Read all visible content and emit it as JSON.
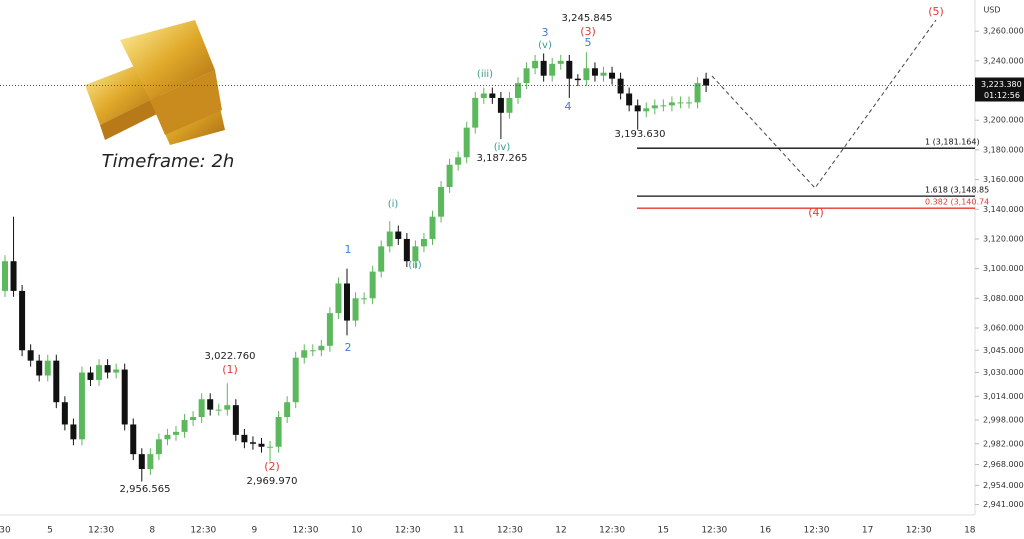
{
  "chart_data": {
    "type": "candlestick",
    "title": "Timeframe: 2h",
    "axis_unit": "USD",
    "ylim": [
      2934,
      3281
    ],
    "yticks": [
      {
        "value": 2941,
        "label": "2,941.000"
      },
      {
        "value": 2954,
        "label": "2,954.000"
      },
      {
        "value": 2968,
        "label": "2,968.000"
      },
      {
        "value": 2982,
        "label": "2,982.000"
      },
      {
        "value": 2998,
        "label": "2,998.000"
      },
      {
        "value": 3014,
        "label": "3,014.000"
      },
      {
        "value": 3030,
        "label": "3,030.000"
      },
      {
        "value": 3045,
        "label": "3,045.000"
      },
      {
        "value": 3060,
        "label": "3,060.000"
      },
      {
        "value": 3080,
        "label": "3,080.000"
      },
      {
        "value": 3100,
        "label": "3,100.000"
      },
      {
        "value": 3120,
        "label": "3,120.000"
      },
      {
        "value": 3140,
        "label": "3,140.000"
      },
      {
        "value": 3160,
        "label": "3,160.000"
      },
      {
        "value": 3180,
        "label": "3,180.000"
      },
      {
        "value": 3200,
        "label": "3,200.000"
      },
      {
        "value": 3220,
        "label": "3,220.000"
      },
      {
        "value": 3240,
        "label": "3,240.000"
      },
      {
        "value": 3260,
        "label": "3,260.000"
      }
    ],
    "xtick_labels": [
      "30",
      "5",
      "12:30",
      "8",
      "12:30",
      "9",
      "12:30",
      "10",
      "12:30",
      "11",
      "12:30",
      "12",
      "12:30",
      "15",
      "12:30",
      "16",
      "12:30",
      "17",
      "12:30",
      "18"
    ],
    "up_color": "#5cb85c",
    "down_color": "#111111",
    "open": [
      3085,
      3105,
      3085,
      3045,
      3038,
      3028,
      3038,
      3010,
      2995,
      2985,
      3030,
      3025,
      3035,
      3030,
      3032,
      2995,
      2975,
      2965,
      2975,
      2985,
      2988,
      2990,
      2998,
      3000,
      3012,
      3005,
      3005,
      3008,
      2988,
      2983,
      2982,
      2980,
      2980,
      3000,
      3010,
      3040,
      3045,
      3045,
      3048,
      3070,
      3090,
      3065,
      3080,
      3080,
      3098,
      3115,
      3125,
      3120,
      3105,
      3115,
      3120,
      3135,
      3155,
      3170,
      3175,
      3195,
      3215,
      3218,
      3215,
      3205,
      3215,
      3225,
      3235,
      3240,
      3230,
      3238,
      3240,
      3228,
      3227,
      3235,
      3230,
      3232,
      3228,
      3218,
      3210,
      3206,
      3208,
      3210,
      3210,
      3212,
      3212,
      3212,
      3228
    ],
    "high": [
      3109,
      3135,
      3089,
      3049,
      3042,
      3042,
      3042,
      3014,
      2999,
      3034,
      3034,
      3039,
      3039,
      3036,
      3036,
      2999,
      2979,
      2979,
      2989,
      2992,
      2994,
      3002,
      3004,
      3016,
      3016,
      3009,
      3022.76,
      3012,
      2992,
      2987,
      2986,
      2984,
      3004,
      3014,
      3044,
      3049,
      3049,
      3052,
      3074,
      3094,
      3100,
      3084,
      3084,
      3102,
      3119,
      3132,
      3129,
      3124,
      3119,
      3124,
      3139,
      3159,
      3174,
      3179,
      3199,
      3219,
      3222,
      3222,
      3219,
      3219,
      3229,
      3239,
      3244,
      3245,
      3242,
      3244,
      3244,
      3231,
      3245.845,
      3239,
      3236,
      3236,
      3232,
      3222,
      3214,
      3212,
      3214,
      3214,
      3216,
      3216,
      3216,
      3229,
      3232
    ],
    "low": [
      3081,
      3081,
      3041,
      3034,
      3024,
      3024,
      3006,
      2991,
      2981,
      2981,
      3021,
      3021,
      3026,
      3026,
      2991,
      2971,
      2956.565,
      2961,
      2971,
      2981,
      2984,
      2986,
      2994,
      2996,
      3001,
      3001,
      3001,
      2984,
      2979,
      2978,
      2976,
      2969.97,
      2976,
      2996,
      3006,
      3036,
      3041,
      3041,
      3044,
      3066,
      3055,
      3061,
      3076,
      3076,
      3094,
      3111,
      3116,
      3101,
      3100,
      3111,
      3116,
      3131,
      3151,
      3166,
      3171,
      3191,
      3211,
      3211,
      3187.265,
      3201,
      3211,
      3221,
      3231,
      3226,
      3226,
      3234,
      3215,
      3223,
      3223,
      3226,
      3226,
      3224,
      3214,
      3206,
      3193.63,
      3202,
      3204,
      3206,
      3206,
      3208,
      3208,
      3208,
      3219
    ],
    "close": [
      3105,
      3085,
      3045,
      3038,
      3028,
      3038,
      3010,
      2995,
      2985,
      3030,
      3025,
      3035,
      3030,
      3032,
      2995,
      2975,
      2965,
      2975,
      2985,
      2988,
      2990,
      2998,
      3000,
      3012,
      3005,
      3005,
      3008,
      2988,
      2983,
      2982,
      2980,
      2980,
      3000,
      3010,
      3040,
      3045,
      3045,
      3048,
      3070,
      3090,
      3065,
      3080,
      3080,
      3098,
      3115,
      3125,
      3120,
      3105,
      3115,
      3120,
      3135,
      3155,
      3170,
      3175,
      3195,
      3215,
      3218,
      3215,
      3205,
      3215,
      3225,
      3235,
      3240,
      3230,
      3238,
      3240,
      3228,
      3227,
      3235,
      3230,
      3232,
      3228,
      3218,
      3210,
      3206,
      3208,
      3210,
      3210,
      3212,
      3212,
      3212,
      3225,
      3223.38
    ],
    "last_price": {
      "value": 3223.38,
      "label": "3,223.380",
      "countdown": "01:12:56"
    },
    "fib_levels": [
      {
        "value": 3181.164,
        "label": "1 (3,181.164)",
        "color": "#111111"
      },
      {
        "value": 3148.85,
        "label": "1.618 (3,148.85",
        "color": "#111111"
      },
      {
        "value": 3140.74,
        "label": "0.382 (3,140.74",
        "color": "#e53935"
      }
    ],
    "major_waves": [
      "(1)",
      "(2)",
      "(3)",
      "(4)",
      "(5)"
    ],
    "minor_waves": [
      "1",
      "2",
      "3",
      "4",
      "5"
    ],
    "sub_waves": [
      "(i)",
      "(ii)",
      "(iii)",
      "(iv)",
      "(v)"
    ],
    "price_labels": [
      "3,245.845",
      "3,022.760",
      "2,956.565",
      "2,969.970",
      "3,187.265",
      "3,193.630"
    ]
  }
}
